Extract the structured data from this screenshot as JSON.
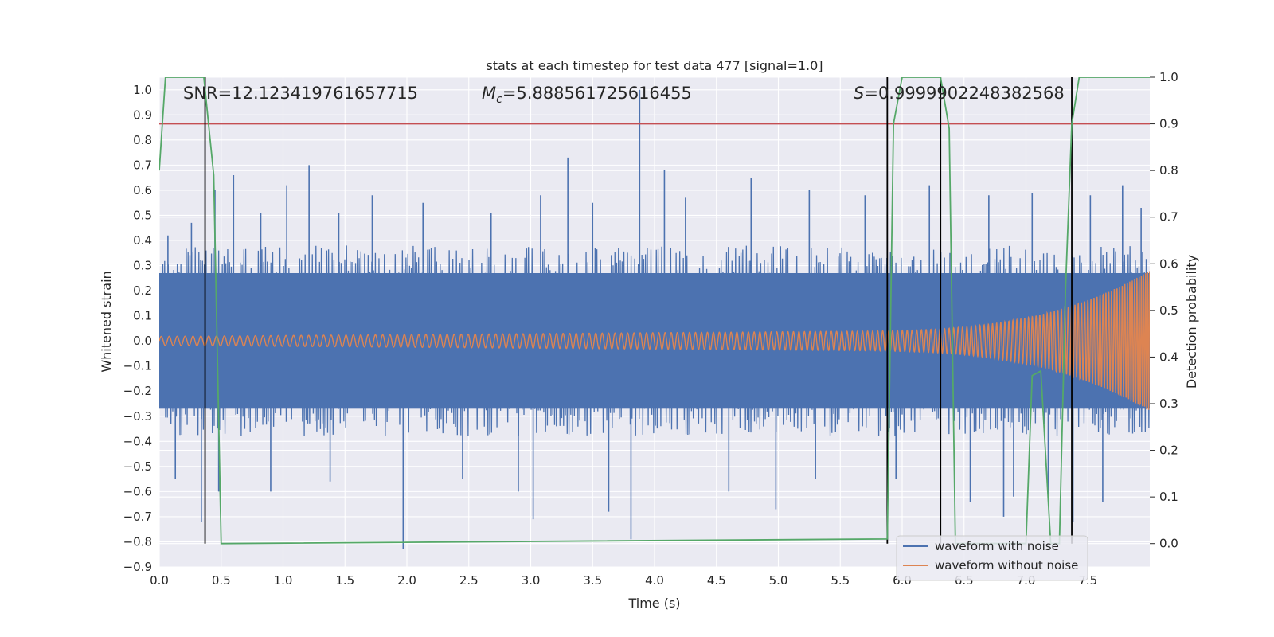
{
  "chart_data": {
    "type": "line",
    "title": "stats at each timestep for test data 477 [signal=1.0]",
    "xlabel": "Time (s)",
    "ylabel_left": "Whitened strain",
    "ylabel_right": "Detection probability",
    "xlim": [
      0.0,
      8.0
    ],
    "ylim_left": [
      -0.9,
      1.05
    ],
    "ylim_right": [
      -0.05,
      1.0
    ],
    "x_ticks": [
      "0.0",
      "0.5",
      "1.0",
      "1.5",
      "2.0",
      "2.5",
      "3.0",
      "3.5",
      "4.0",
      "4.5",
      "5.0",
      "5.5",
      "6.0",
      "6.5",
      "7.0",
      "7.5"
    ],
    "y_left_ticks": [
      "-0.9",
      "-0.8",
      "-0.7",
      "-0.6",
      "-0.5",
      "-0.4",
      "-0.3",
      "-0.2",
      "-0.1",
      "0.0",
      "0.1",
      "0.2",
      "0.3",
      "0.4",
      "0.5",
      "0.6",
      "0.7",
      "0.8",
      "0.9",
      "1.0"
    ],
    "y_right_ticks": [
      "0.0",
      "0.1",
      "0.2",
      "0.3",
      "0.4",
      "0.5",
      "0.6",
      "0.7",
      "0.8",
      "0.9",
      "1.0"
    ],
    "grid": true,
    "legend_position": "lower-right",
    "annotations": {
      "snr": {
        "prefix": "SNR=",
        "value": "12.123419761657715"
      },
      "mc": {
        "symbol": "M",
        "subscript": "c",
        "value": "=5.888561725616455"
      },
      "s": {
        "symbol": "S",
        "value": "=0.9999902248382568"
      }
    },
    "threshold_right": 0.9,
    "vertical_markers_x": [
      0.37,
      5.88,
      6.31,
      7.37
    ],
    "series": [
      {
        "name": "waveform with noise",
        "color": "#4c72b0",
        "envelope": {
          "upper_typical": 0.38,
          "lower_typical": -0.38
        },
        "spikes": [
          [
            0.07,
            0.42
          ],
          [
            0.13,
            -0.55
          ],
          [
            0.26,
            0.47
          ],
          [
            0.34,
            -0.72
          ],
          [
            0.45,
            0.6
          ],
          [
            0.48,
            -0.6
          ],
          [
            0.6,
            0.66
          ],
          [
            0.82,
            0.51
          ],
          [
            0.9,
            -0.6
          ],
          [
            1.03,
            0.62
          ],
          [
            1.21,
            0.7
          ],
          [
            1.38,
            -0.56
          ],
          [
            1.45,
            0.51
          ],
          [
            1.72,
            0.58
          ],
          [
            1.97,
            -0.83
          ],
          [
            2.13,
            0.55
          ],
          [
            2.45,
            -0.55
          ],
          [
            2.68,
            0.51
          ],
          [
            2.9,
            -0.6
          ],
          [
            3.02,
            -0.71
          ],
          [
            3.08,
            0.58
          ],
          [
            3.3,
            0.73
          ],
          [
            3.5,
            0.55
          ],
          [
            3.63,
            -0.68
          ],
          [
            3.81,
            -0.79
          ],
          [
            3.88,
            1.0
          ],
          [
            4.08,
            0.68
          ],
          [
            4.25,
            0.57
          ],
          [
            4.6,
            -0.6
          ],
          [
            4.78,
            0.65
          ],
          [
            4.98,
            -0.67
          ],
          [
            5.25,
            0.6
          ],
          [
            5.3,
            -0.55
          ],
          [
            5.7,
            0.58
          ],
          [
            5.95,
            -0.55
          ],
          [
            6.22,
            0.62
          ],
          [
            6.55,
            -0.64
          ],
          [
            6.7,
            0.58
          ],
          [
            6.82,
            -0.7
          ],
          [
            6.9,
            -0.62
          ],
          [
            7.05,
            0.59
          ],
          [
            7.18,
            -0.62
          ],
          [
            7.38,
            -0.72
          ],
          [
            7.52,
            0.58
          ],
          [
            7.62,
            -0.64
          ],
          [
            7.78,
            0.62
          ],
          [
            7.93,
            0.53
          ]
        ]
      },
      {
        "name": "waveform without noise",
        "color": "#dd8452",
        "chirp": {
          "amplitude_start": 0.018,
          "amplitude_mid": 0.04,
          "amplitude_end": 0.28,
          "cycles_visible_per_second_start": 16
        }
      },
      {
        "name": "detection probability",
        "color": "#55a868",
        "axis": "right",
        "x": [
          0.0,
          0.05,
          0.1,
          0.36,
          0.44,
          0.5,
          0.5,
          5.88,
          5.93,
          6.0,
          6.31,
          6.38,
          6.43,
          7.0,
          7.05,
          7.12,
          7.2,
          7.27,
          7.32,
          7.37,
          7.43,
          8.0
        ],
        "values": [
          0.8,
          1.0,
          1.0,
          1.0,
          0.79,
          0.0,
          0.0,
          0.01,
          0.9,
          1.0,
          1.0,
          0.89,
          0.0,
          0.0,
          0.36,
          0.37,
          0.0,
          0.0,
          0.55,
          0.9,
          1.0,
          1.0
        ]
      }
    ],
    "colors": {
      "background": "#eaeaf2",
      "grid": "#ffffff",
      "threshold": "#c44e52",
      "marker": "#000000"
    }
  }
}
